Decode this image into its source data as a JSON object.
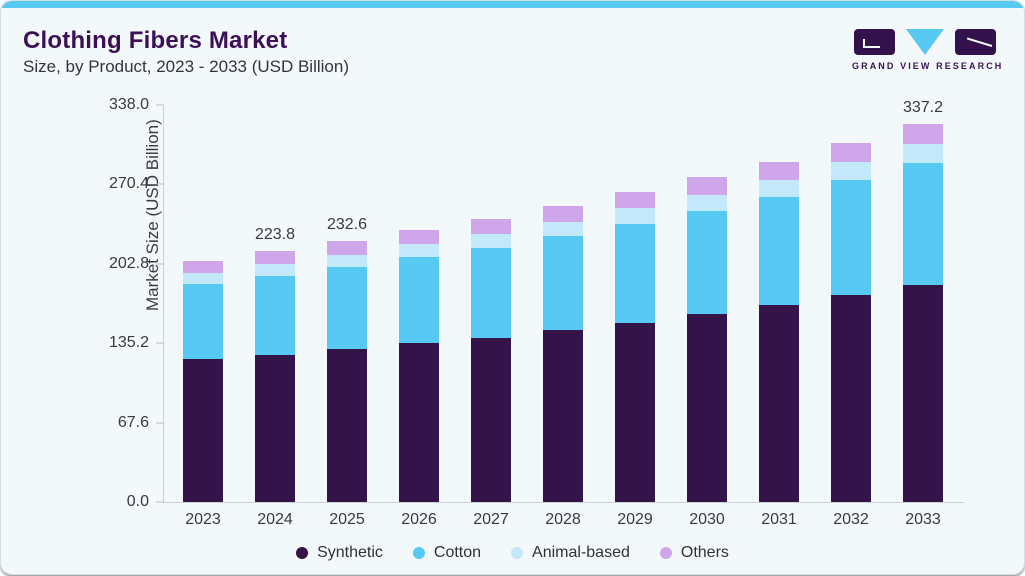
{
  "header": {
    "title": "Clothing Fibers Market",
    "subtitle": "Size, by Product, 2023 - 2033 (USD Billion)"
  },
  "logo": {
    "text": "GRAND VIEW RESEARCH",
    "brand_purple": "#32114c",
    "brand_cyan": "#58c9f1"
  },
  "chart_data": {
    "type": "bar",
    "stacked": true,
    "title": "Clothing Fibers Market Size, by Product, 2023 - 2033 (USD Billion)",
    "xlabel": "",
    "ylabel": "Market Size (USD Billion)",
    "categories": [
      "2023",
      "2024",
      "2025",
      "2026",
      "2027",
      "2028",
      "2029",
      "2030",
      "2031",
      "2032",
      "2033"
    ],
    "series": [
      {
        "name": "Synthetic",
        "color": "#341348",
        "values": [
          127.5,
          131.1,
          136.4,
          141.8,
          146.2,
          153.3,
          159.6,
          167.6,
          175.4,
          184.3,
          193.2
        ]
      },
      {
        "name": "Cotton",
        "color": "#57c9f2",
        "values": [
          66.7,
          70.8,
          73.1,
          76.3,
          80.6,
          83.5,
          88.4,
          92.0,
          96.3,
          102.6,
          108.8
        ]
      },
      {
        "name": "Animal-based",
        "color": "#c3e8fa",
        "values": [
          10.0,
          10.6,
          11.2,
          11.8,
          12.4,
          13.1,
          13.8,
          14.5,
          15.3,
          16.1,
          17.0
        ]
      },
      {
        "name": "Others",
        "color": "#cfa6e9",
        "values": [
          10.7,
          11.3,
          11.9,
          12.6,
          13.3,
          14.0,
          14.8,
          15.6,
          16.4,
          17.3,
          18.2
        ]
      }
    ],
    "totals": [
      214.9,
      223.8,
      232.6,
      242.5,
      252.5,
      263.9,
      276.6,
      289.7,
      303.4,
      320.3,
      337.2
    ],
    "bar_labels": [
      "",
      "223.8",
      "232.6",
      "",
      "",
      "",
      "",
      "",
      "",
      "",
      "337.2"
    ],
    "yticks": [
      "0.0",
      "67.6",
      "135.2",
      "202.8",
      "270.4",
      "338.0"
    ],
    "ylim": [
      0,
      338
    ],
    "draw_max": 354,
    "grid": false,
    "legend_position": "bottom"
  }
}
